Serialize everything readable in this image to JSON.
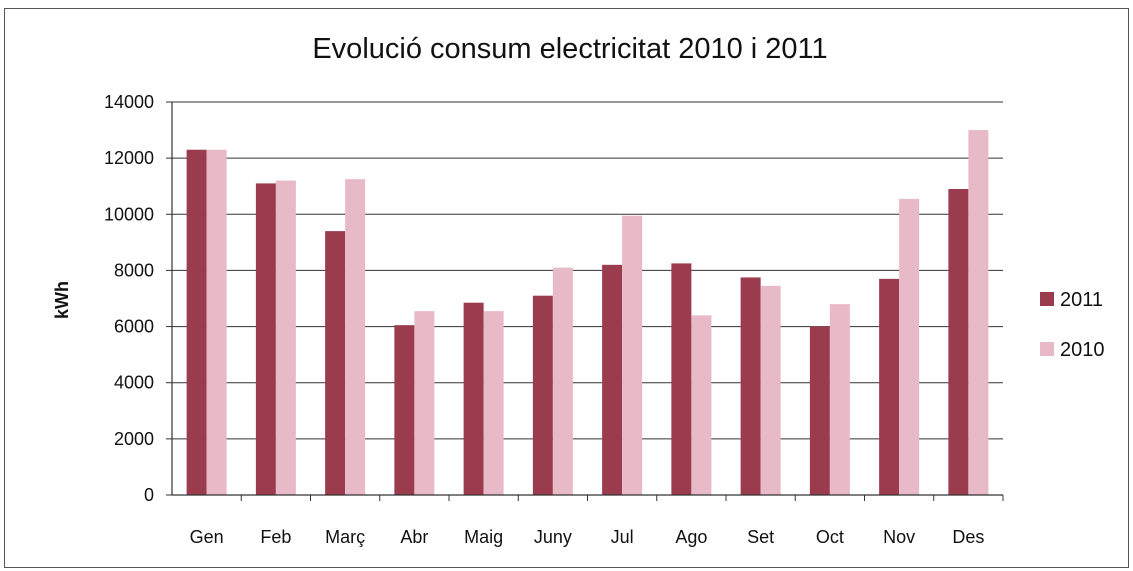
{
  "chart_data": {
    "type": "bar",
    "title": "Evolució consum electricitat 2010 i 2011",
    "xlabel": "",
    "ylabel": "kWh",
    "ylim": [
      0,
      14000
    ],
    "yticks": [
      0,
      2000,
      4000,
      6000,
      8000,
      10000,
      12000,
      14000
    ],
    "grid": true,
    "legend_position": "right",
    "categories": [
      "Gen",
      "Feb",
      "Març",
      "Abr",
      "Maig",
      "Juny",
      "Jul",
      "Ago",
      "Set",
      "Oct",
      "Nov",
      "Des"
    ],
    "series": [
      {
        "name": "2011",
        "color": "#9b3b4e",
        "values": [
          12300,
          11100,
          9400,
          6050,
          6850,
          7100,
          8200,
          8250,
          7750,
          6000,
          7700,
          10900
        ]
      },
      {
        "name": "2010",
        "color": "#e8b9c6",
        "values": [
          12300,
          11200,
          11250,
          6550,
          6550,
          8100,
          9950,
          6400,
          7450,
          6800,
          10550,
          13000
        ]
      }
    ]
  }
}
